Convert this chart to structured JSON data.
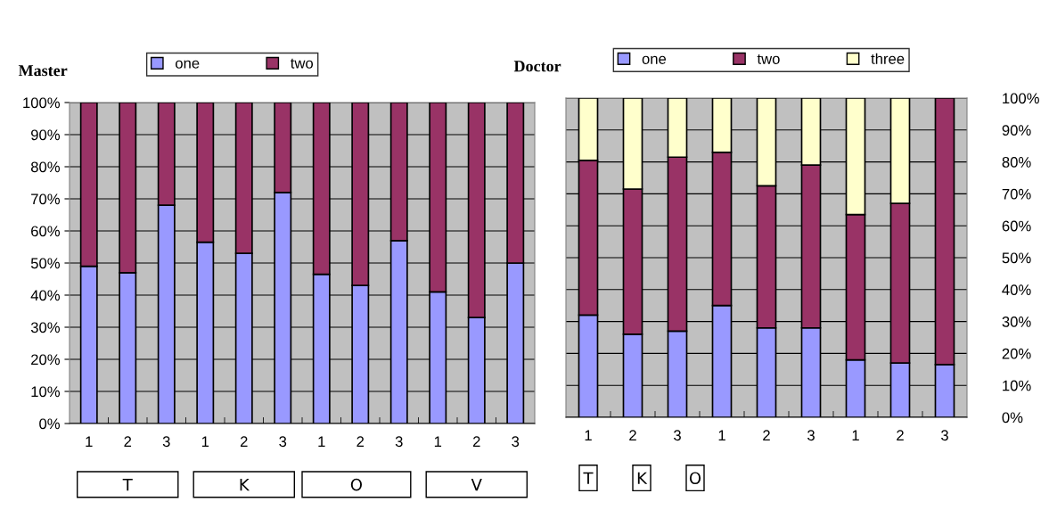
{
  "chart_data": [
    {
      "type": "bar",
      "title": "Master",
      "stacked": true,
      "categories": [
        "1",
        "2",
        "3",
        "1",
        "2",
        "3",
        "1",
        "2",
        "3",
        "1",
        "2",
        "3"
      ],
      "series": [
        {
          "name": "one",
          "color": "#9999ff",
          "values": [
            49,
            47,
            68,
            56.5,
            53,
            72,
            46.5,
            43,
            57,
            41,
            33,
            50
          ]
        },
        {
          "name": "two",
          "color": "#993366",
          "values": [
            51,
            53,
            32,
            43.5,
            47,
            28,
            53.5,
            57,
            43,
            59,
            67,
            50
          ]
        }
      ],
      "ylim": [
        0,
        100
      ],
      "yticks": [
        {
          "value": 0,
          "label": "0%"
        },
        {
          "value": 10,
          "label": "10%"
        },
        {
          "value": 20,
          "label": "20%"
        },
        {
          "value": 30,
          "label": "30%"
        },
        {
          "value": 40,
          "label": "40%"
        },
        {
          "value": 50,
          "label": "50%"
        },
        {
          "value": 60,
          "label": "60%"
        },
        {
          "value": 70,
          "label": "70%"
        },
        {
          "value": 80,
          "label": "80%"
        },
        {
          "value": 90,
          "label": "90%"
        },
        {
          "value": 100,
          "label": "100%"
        }
      ],
      "grid": "y",
      "legend": "top",
      "annotations": [
        "T",
        "K",
        "O",
        "V"
      ]
    },
    {
      "type": "bar",
      "title": "Doctor",
      "stacked": true,
      "categories": [
        "1",
        "2",
        "3",
        "1",
        "2",
        "3",
        "1",
        "2",
        "3"
      ],
      "series": [
        {
          "name": "one",
          "color": "#9999ff",
          "values": [
            32,
            26,
            27,
            35,
            28,
            28,
            18,
            17,
            16.5
          ]
        },
        {
          "name": "two",
          "color": "#993366",
          "values": [
            48.5,
            45.5,
            54.5,
            48,
            44.5,
            51,
            45.5,
            50,
            83.5
          ]
        },
        {
          "name": "three",
          "color": "#ffffcc",
          "values": [
            19.5,
            28.5,
            18.5,
            17,
            27.5,
            21,
            36.5,
            33,
            null
          ]
        }
      ],
      "ylim": [
        0,
        100
      ],
      "yticks": [
        {
          "value": 0,
          "label": "0%"
        },
        {
          "value": 10,
          "label": "10%"
        },
        {
          "value": 20,
          "label": "20%"
        },
        {
          "value": 30,
          "label": "30%"
        },
        {
          "value": 40,
          "label": "40%"
        },
        {
          "value": 50,
          "label": "50%"
        },
        {
          "value": 60,
          "label": "60%"
        },
        {
          "value": 70,
          "label": "70%"
        },
        {
          "value": 80,
          "label": "80%"
        },
        {
          "value": 90,
          "label": "90%"
        },
        {
          "value": 100,
          "label": "100%"
        }
      ],
      "grid": "y",
      "legend": "top",
      "annotations": [
        "T",
        "K",
        "O"
      ]
    }
  ]
}
